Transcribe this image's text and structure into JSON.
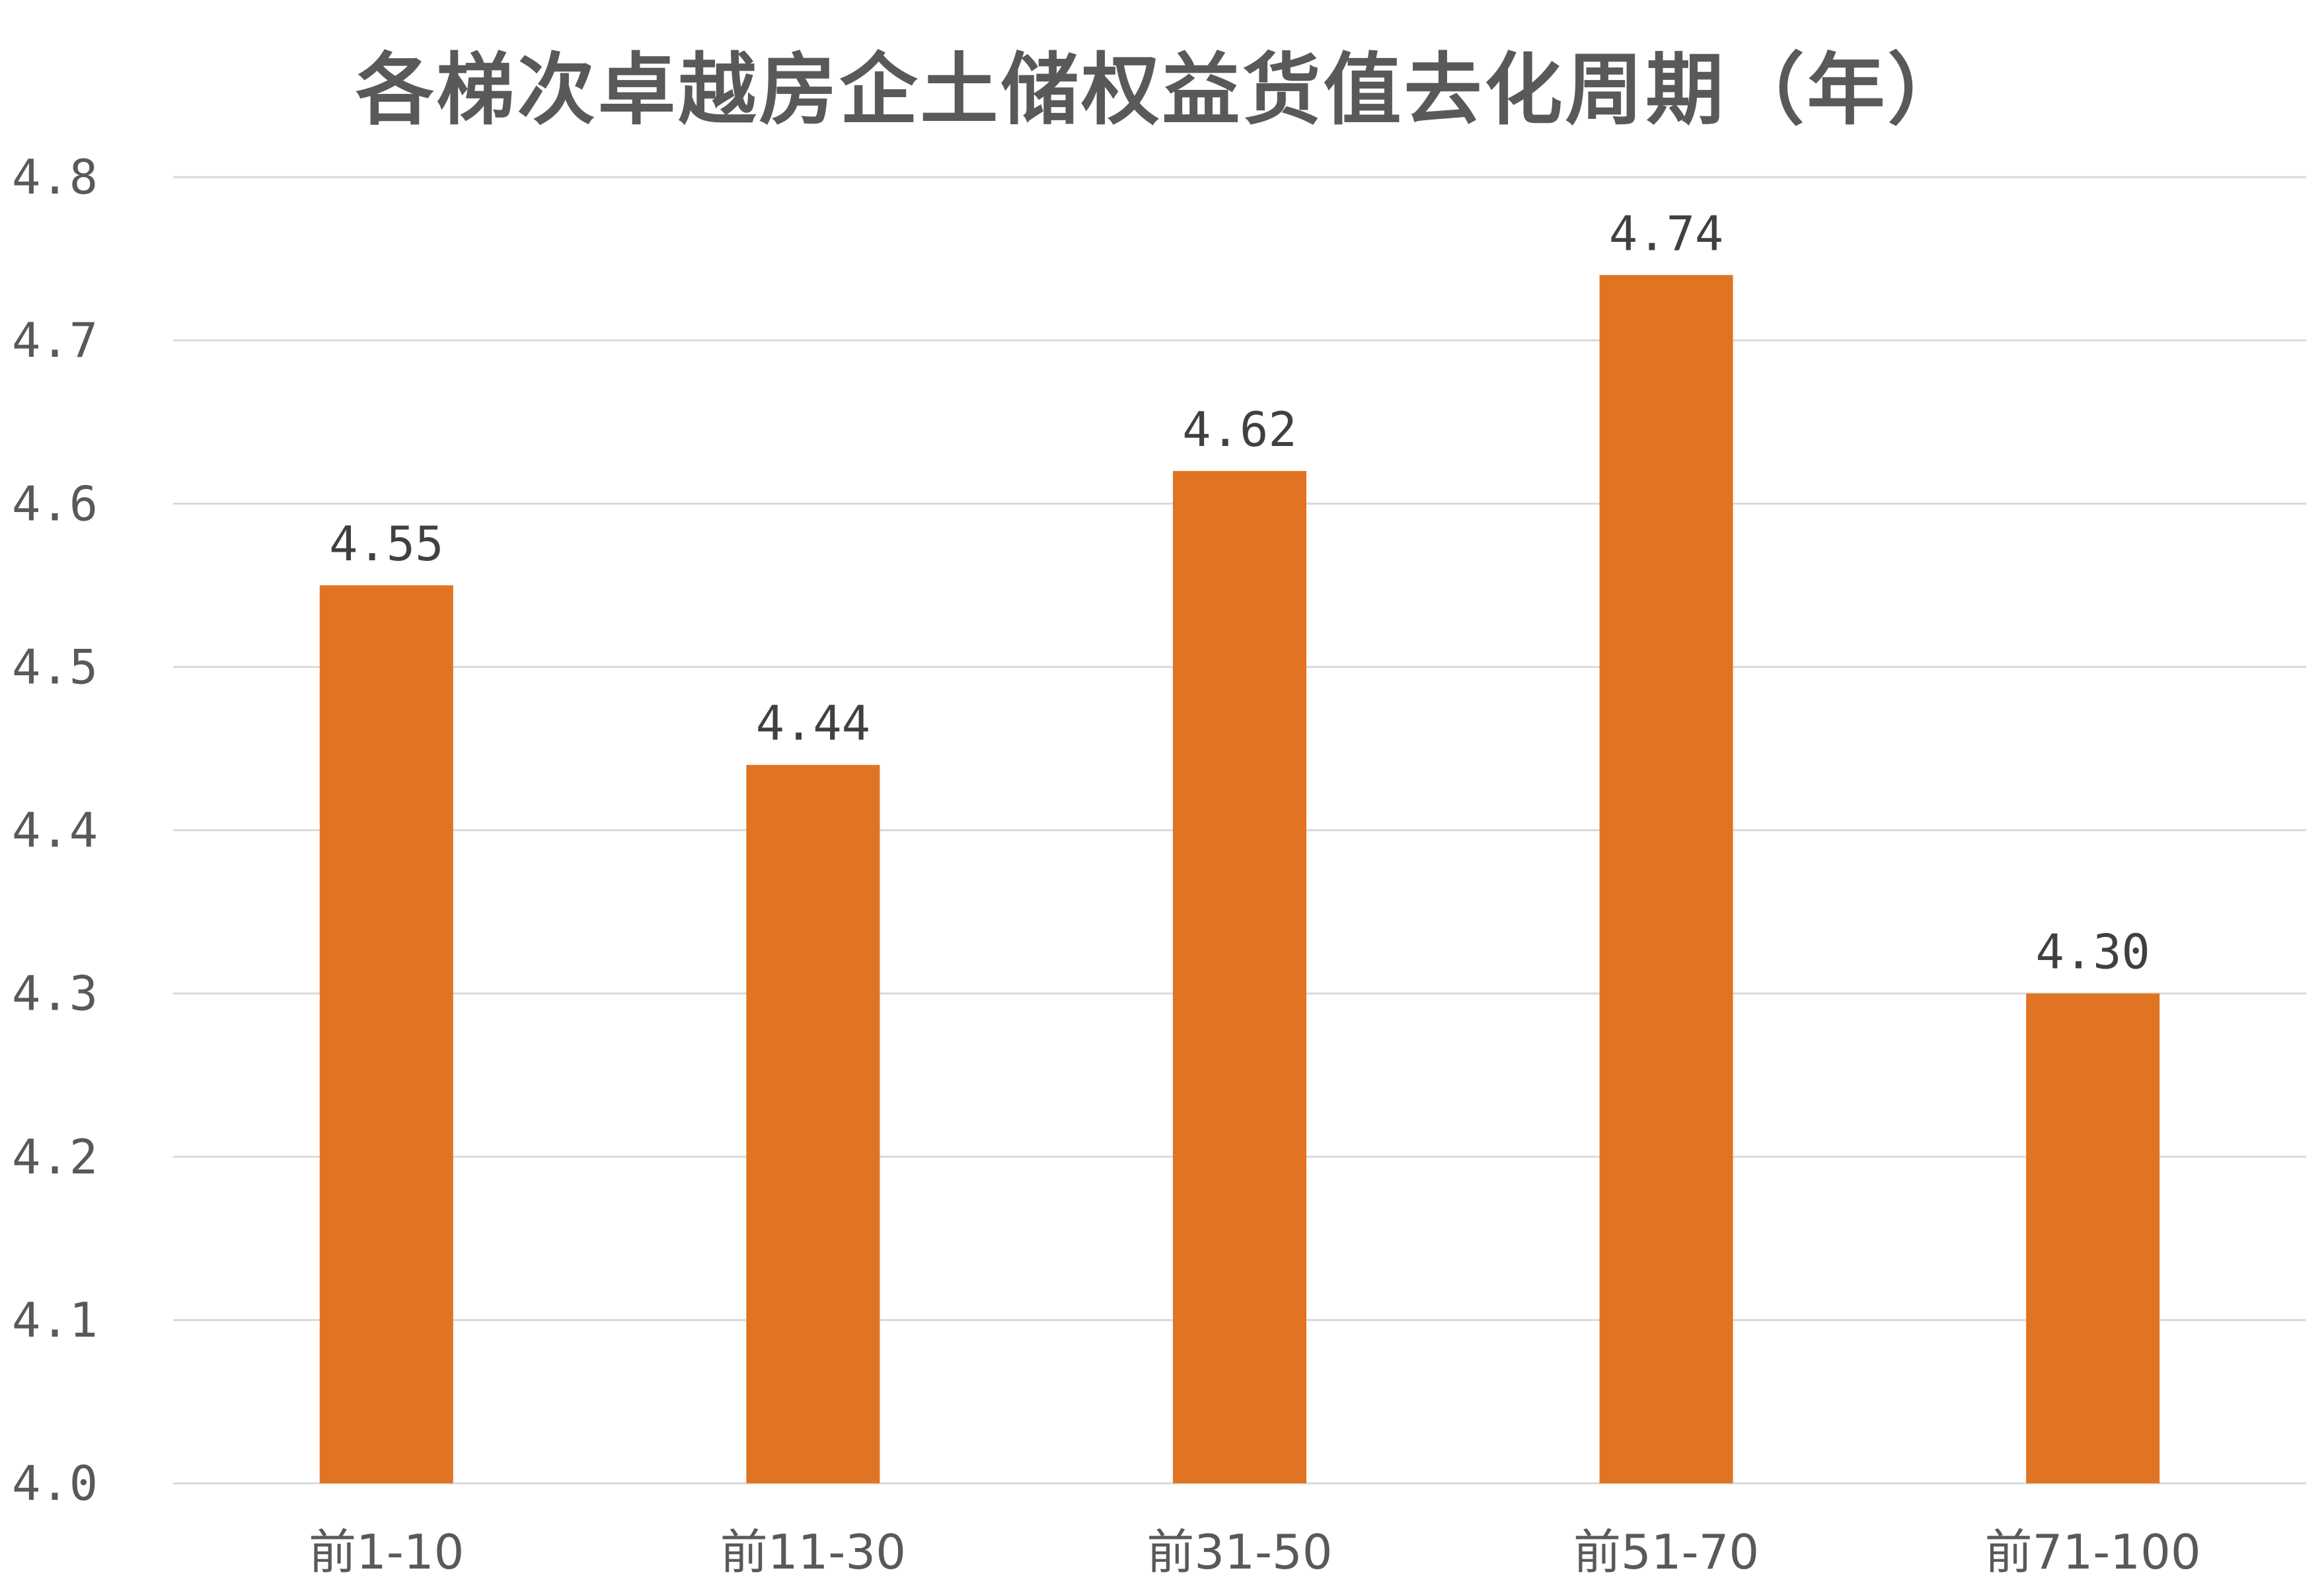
{
  "chart_data": {
    "type": "bar",
    "title": "各梯次卓越房企土储权益货值去化周期（年）",
    "categories": [
      "前1-10",
      "前11-30",
      "前31-50",
      "前51-70",
      "前71-100"
    ],
    "values": [
      4.55,
      4.44,
      4.62,
      4.74,
      4.3
    ],
    "data_labels": [
      "4.55",
      "4.44",
      "4.62",
      "4.74",
      "4.30"
    ],
    "yticks": [
      "4.0",
      "4.1",
      "4.2",
      "4.3",
      "4.4",
      "4.5",
      "4.6",
      "4.7",
      "4.8"
    ],
    "ylim": [
      4.0,
      4.8
    ],
    "grid": true,
    "legend": "none",
    "bar_color": "#E07422",
    "grid_color": "#D9D9D9"
  }
}
